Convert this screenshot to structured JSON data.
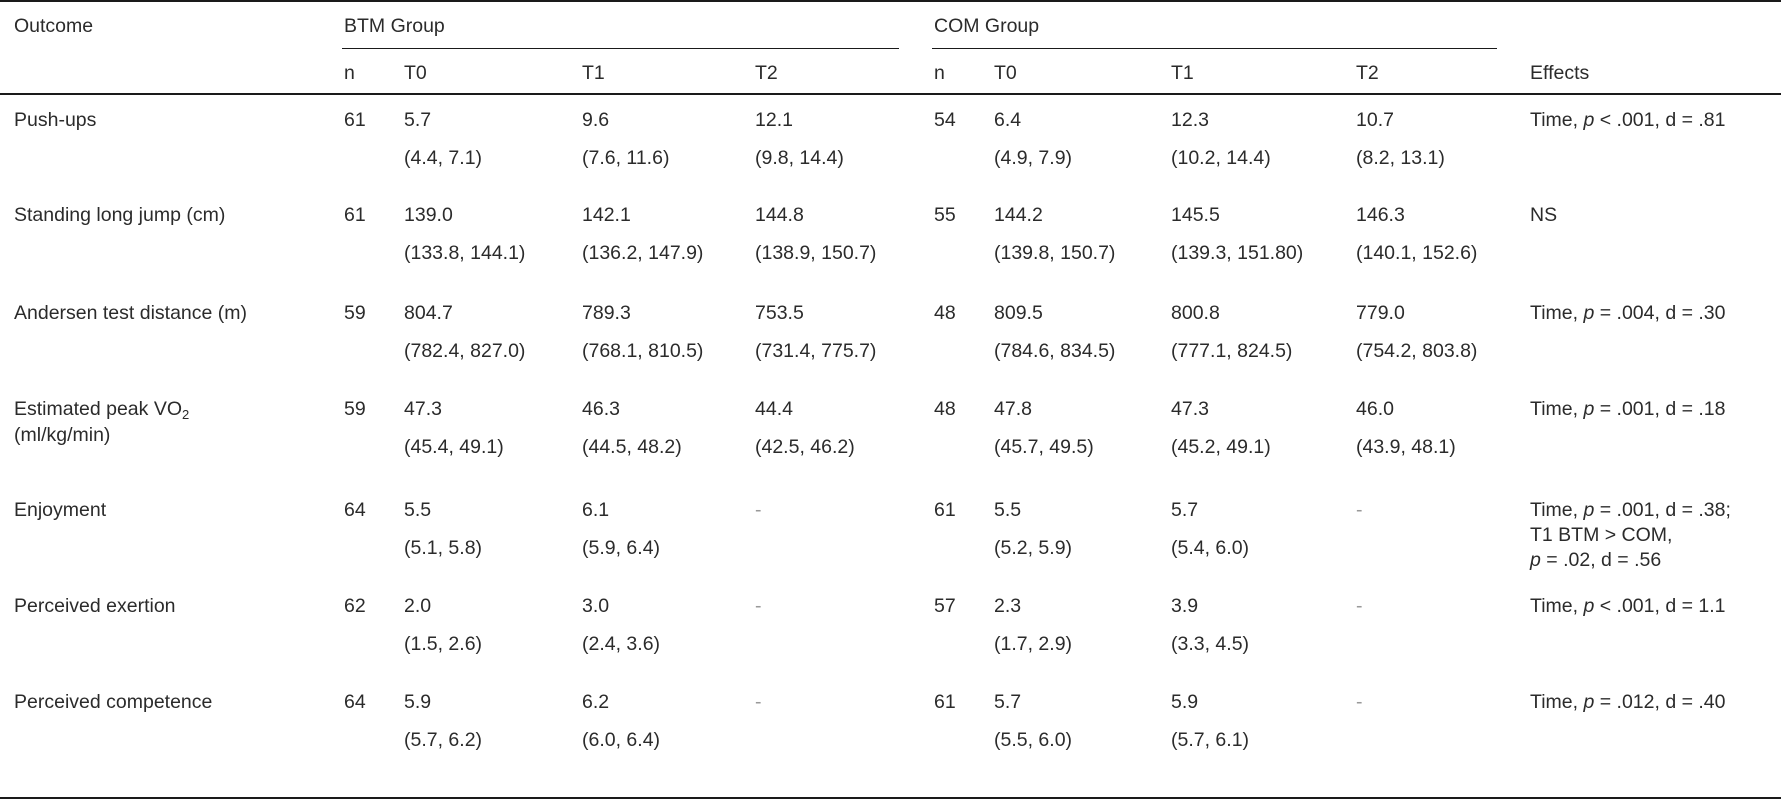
{
  "table": {
    "header": {
      "outcome": "Outcome",
      "group_btm": "BTM Group",
      "group_com": "COM Group",
      "effects": "Effects",
      "n": "n",
      "t0": "T0",
      "t1": "T1",
      "t2": "T2"
    },
    "rows": [
      {
        "label": [
          "Push-ups"
        ],
        "btm": {
          "n": "61",
          "mean": [
            "5.7",
            "9.6",
            "12.1"
          ],
          "ci": [
            "(4.4, 7.1)",
            "(7.6, 11.6)",
            "(9.8, 14.4)"
          ]
        },
        "com": {
          "n": "54",
          "mean": [
            "6.4",
            "12.3",
            "10.7"
          ],
          "ci": [
            "(4.9, 7.9)",
            "(10.2, 14.4)",
            "(8.2, 13.1)"
          ]
        },
        "effects": [
          "Time, |p| < .001, d = .81"
        ]
      },
      {
        "label": [
          "Standing long jump (cm)"
        ],
        "btm": {
          "n": "61",
          "mean": [
            "139.0",
            "142.1",
            "144.8"
          ],
          "ci": [
            "(133.8, 144.1)",
            "(136.2, 147.9)",
            "(138.9, 150.7)"
          ]
        },
        "com": {
          "n": "55",
          "mean": [
            "144.2",
            "145.5",
            "146.3"
          ],
          "ci": [
            "(139.8, 150.7)",
            "(139.3, 151.80)",
            "(140.1, 152.6)"
          ]
        },
        "effects": [
          "NS"
        ]
      },
      {
        "label": [
          "Andersen test distance (m)"
        ],
        "btm": {
          "n": "59",
          "mean": [
            "804.7",
            "789.3",
            "753.5"
          ],
          "ci": [
            "(782.4, 827.0)",
            "(768.1, 810.5)",
            "(731.4, 775.7)"
          ]
        },
        "com": {
          "n": "48",
          "mean": [
            "809.5",
            "800.8",
            "779.0"
          ],
          "ci": [
            "(784.6, 834.5)",
            "(777.1, 824.5)",
            "(754.2, 803.8)"
          ]
        },
        "effects": [
          "Time, |p| = .004, d = .30"
        ]
      },
      {
        "label": [
          "Estimated peak VO_2",
          "(ml/kg/min)"
        ],
        "btm": {
          "n": "59",
          "mean": [
            "47.3",
            "46.3",
            "44.4"
          ],
          "ci": [
            "(45.4, 49.1)",
            "(44.5, 48.2)",
            "(42.5, 46.2)"
          ]
        },
        "com": {
          "n": "48",
          "mean": [
            "47.8",
            "47.3",
            "46.0"
          ],
          "ci": [
            "(45.7, 49.5)",
            "(45.2, 49.1)",
            "(43.9, 48.1)"
          ]
        },
        "effects": [
          "Time, |p| = .001, d = .18"
        ]
      },
      {
        "label": [
          "Enjoyment"
        ],
        "btm": {
          "n": "64",
          "mean": [
            "5.5",
            "6.1",
            "-"
          ],
          "ci": [
            "(5.1, 5.8)",
            "(5.9, 6.4)",
            ""
          ]
        },
        "com": {
          "n": "61",
          "mean": [
            "5.5",
            "5.7",
            "-"
          ],
          "ci": [
            "(5.2, 5.9)",
            "(5.4, 6.0)",
            ""
          ]
        },
        "effects": [
          "Time, |p| = .001, d = .38;",
          "T1 BTM > COM,",
          "|p| = .02, d = .56"
        ]
      },
      {
        "label": [
          "Perceived exertion"
        ],
        "btm": {
          "n": "62",
          "mean": [
            "2.0",
            "3.0",
            "-"
          ],
          "ci": [
            "(1.5, 2.6)",
            "(2.4, 3.6)",
            ""
          ]
        },
        "com": {
          "n": "57",
          "mean": [
            "2.3",
            "3.9",
            "-"
          ],
          "ci": [
            "(1.7, 2.9)",
            "(3.3, 4.5)",
            ""
          ]
        },
        "effects": [
          "Time, |p| < .001, d = 1.1"
        ]
      },
      {
        "label": [
          "Perceived competence"
        ],
        "btm": {
          "n": "64",
          "mean": [
            "5.9",
            "6.2",
            "-"
          ],
          "ci": [
            "(5.7, 6.2)",
            "(6.0, 6.4)",
            ""
          ]
        },
        "com": {
          "n": "61",
          "mean": [
            "5.7",
            "5.9",
            "-"
          ],
          "ci": [
            "(5.5, 6.0)",
            "(5.7, 6.1)",
            ""
          ]
        },
        "effects": [
          "Time, |p| = .012, d = .40"
        ]
      }
    ]
  }
}
